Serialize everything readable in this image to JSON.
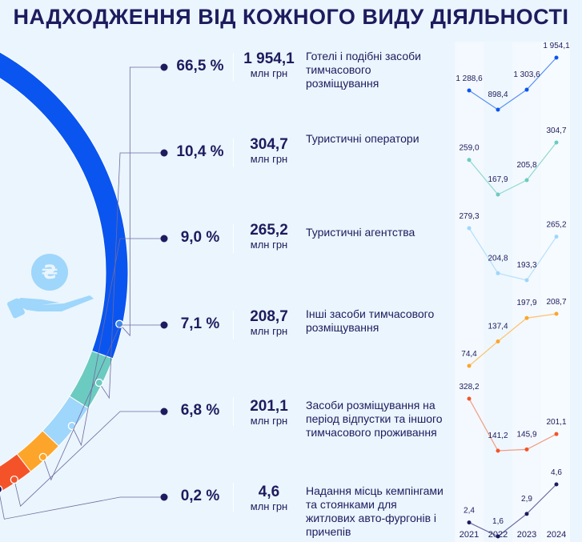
{
  "title": "НАДХОДЖЕННЯ ВІД КОЖНОГО ВИДУ ДІЯЛЬНОСТІ",
  "icon": "hand-with-hryvnia-coin-icon",
  "unit": "млн грн",
  "chart_data": {
    "type": "line",
    "x": [
      "2021",
      "2022",
      "2023",
      "2024"
    ],
    "share_type": "arc-donut",
    "series": [
      {
        "name": "Готелі і подібні засоби тимчасового розміщування",
        "percent": "66,5 %",
        "total": "1 954,1",
        "share": 66.5,
        "color": "#0a55f0",
        "line_color": "#5b8ff5",
        "values": [
          1288.6,
          898.4,
          1303.6,
          1954.1
        ],
        "labels": [
          "1 288,6",
          "898,4",
          "1 303,6",
          "1 954,1"
        ]
      },
      {
        "name": "Туристичні оператори",
        "percent": "10,4 %",
        "total": "304,7",
        "share": 10.4,
        "color": "#6ccbc0",
        "line_color": "#8fd9cf",
        "values": [
          259.0,
          167.9,
          205.8,
          304.7
        ],
        "labels": [
          "259,0",
          "167,9",
          "205,8",
          "304,7"
        ]
      },
      {
        "name": "Туристичні агентства",
        "percent": "9,0 %",
        "total": "265,2",
        "share": 9.0,
        "color": "#9fd6fb",
        "line_color": "#b5e0fb",
        "values": [
          279.3,
          204.8,
          193.3,
          265.2
        ],
        "labels": [
          "279,3",
          "204,8",
          "193,3",
          "265,2"
        ]
      },
      {
        "name": "Інші засоби тимчасового розміщування",
        "percent": "7,1 %",
        "total": "208,7",
        "share": 7.1,
        "color": "#fda52a",
        "line_color": "#fdc36f",
        "values": [
          74.4,
          137.4,
          197.9,
          208.7
        ],
        "labels": [
          "74,4",
          "137,4",
          "197,9",
          "208,7"
        ]
      },
      {
        "name": "Засоби розміщування на період відпустки та іншого тимчасового проживання",
        "percent": "6,8 %",
        "total": "201,1",
        "share": 6.8,
        "color": "#f4532a",
        "line_color": "#f59a82",
        "values": [
          328.2,
          141.2,
          145.9,
          201.1
        ],
        "labels": [
          "328,2",
          "141,2",
          "145,9",
          "201,1"
        ]
      },
      {
        "name": "Надання місць кемпінгами та стоянками для житлових авто-фургонів і причепів",
        "percent": "0,2 %",
        "total": "4,6",
        "share": 0.2,
        "color": "#1e1b5e",
        "line_color": "#6e6aa0",
        "values": [
          2.4,
          1.6,
          2.9,
          4.6
        ],
        "labels": [
          "2,4",
          "1,6",
          "2,9",
          "4,6"
        ]
      }
    ]
  }
}
